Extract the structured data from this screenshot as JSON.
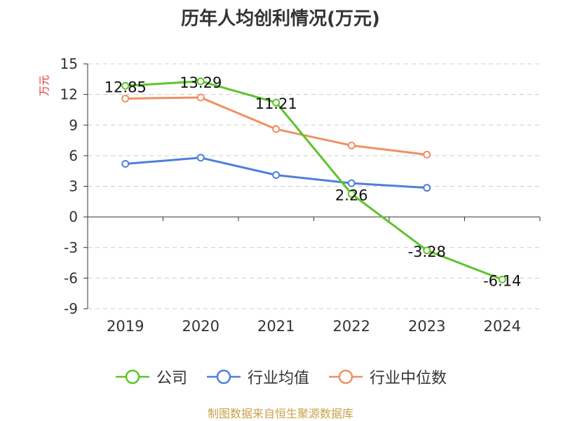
{
  "chart_data": {
    "type": "line",
    "title": "历年人均创利情况(万元)",
    "ylabel": "万元",
    "categories": [
      "2019",
      "2020",
      "2021",
      "2022",
      "2023",
      "2024"
    ],
    "ylim": [
      -9,
      15
    ],
    "yticks": [
      15,
      12,
      9,
      6,
      3,
      0,
      -3,
      -6,
      -9
    ],
    "grid": true,
    "legend_position": "bottom",
    "series": [
      {
        "name": "公司",
        "color": "#5ec42a",
        "values": [
          12.85,
          13.29,
          11.21,
          2.26,
          -3.28,
          -6.14
        ],
        "labels": [
          "12.85",
          "13.29",
          "11.21",
          "2.26",
          "-3.28",
          "-6.14"
        ]
      },
      {
        "name": "行业均值",
        "color": "#4f7fdb",
        "values": [
          5.2,
          5.8,
          4.1,
          3.3,
          2.85,
          null
        ]
      },
      {
        "name": "行业中位数",
        "color": "#f09060",
        "values": [
          11.6,
          11.7,
          8.6,
          7.0,
          6.1,
          null
        ]
      }
    ]
  },
  "source_text": "制图数据来自恒生聚源数据库"
}
